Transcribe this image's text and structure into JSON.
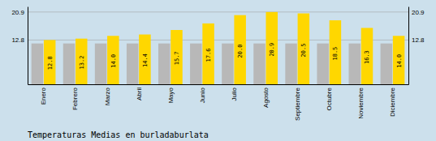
{
  "chart_data": {
    "type": "bar",
    "title": "Temperaturas Medias en burladaburlata",
    "categories": [
      "Enero",
      "Febrero",
      "Marzo",
      "Abril",
      "Mayo",
      "Junio",
      "Julio",
      "Agosto",
      "Septiembre",
      "Octubre",
      "Noviembre",
      "Diciembre"
    ],
    "series": [
      {
        "color": "#B8B8B8",
        "values": [
          11.8,
          11.8,
          11.8,
          11.8,
          11.8,
          11.8,
          11.8,
          11.8,
          11.8,
          11.8,
          11.8,
          11.8
        ]
      },
      {
        "color": "#FFD700",
        "values": [
          12.8,
          13.2,
          14.0,
          14.4,
          15.7,
          17.6,
          20.0,
          20.9,
          20.5,
          18.5,
          16.3,
          14.0
        ],
        "value_labels": [
          "12.8",
          "13.2",
          "14.0",
          "14.4",
          "15.7",
          "17.6",
          "20.0",
          "20.9",
          "20.5",
          "18.5",
          "16.3",
          "14.0"
        ],
        "data_labels": true
      }
    ],
    "ylim": [
      0,
      22.5
    ],
    "yticks": [
      12.8,
      20.9
    ],
    "y2lim": [
      0,
      22.5
    ],
    "y2ticks": [
      12.8,
      20.9
    ],
    "grid": true
  }
}
